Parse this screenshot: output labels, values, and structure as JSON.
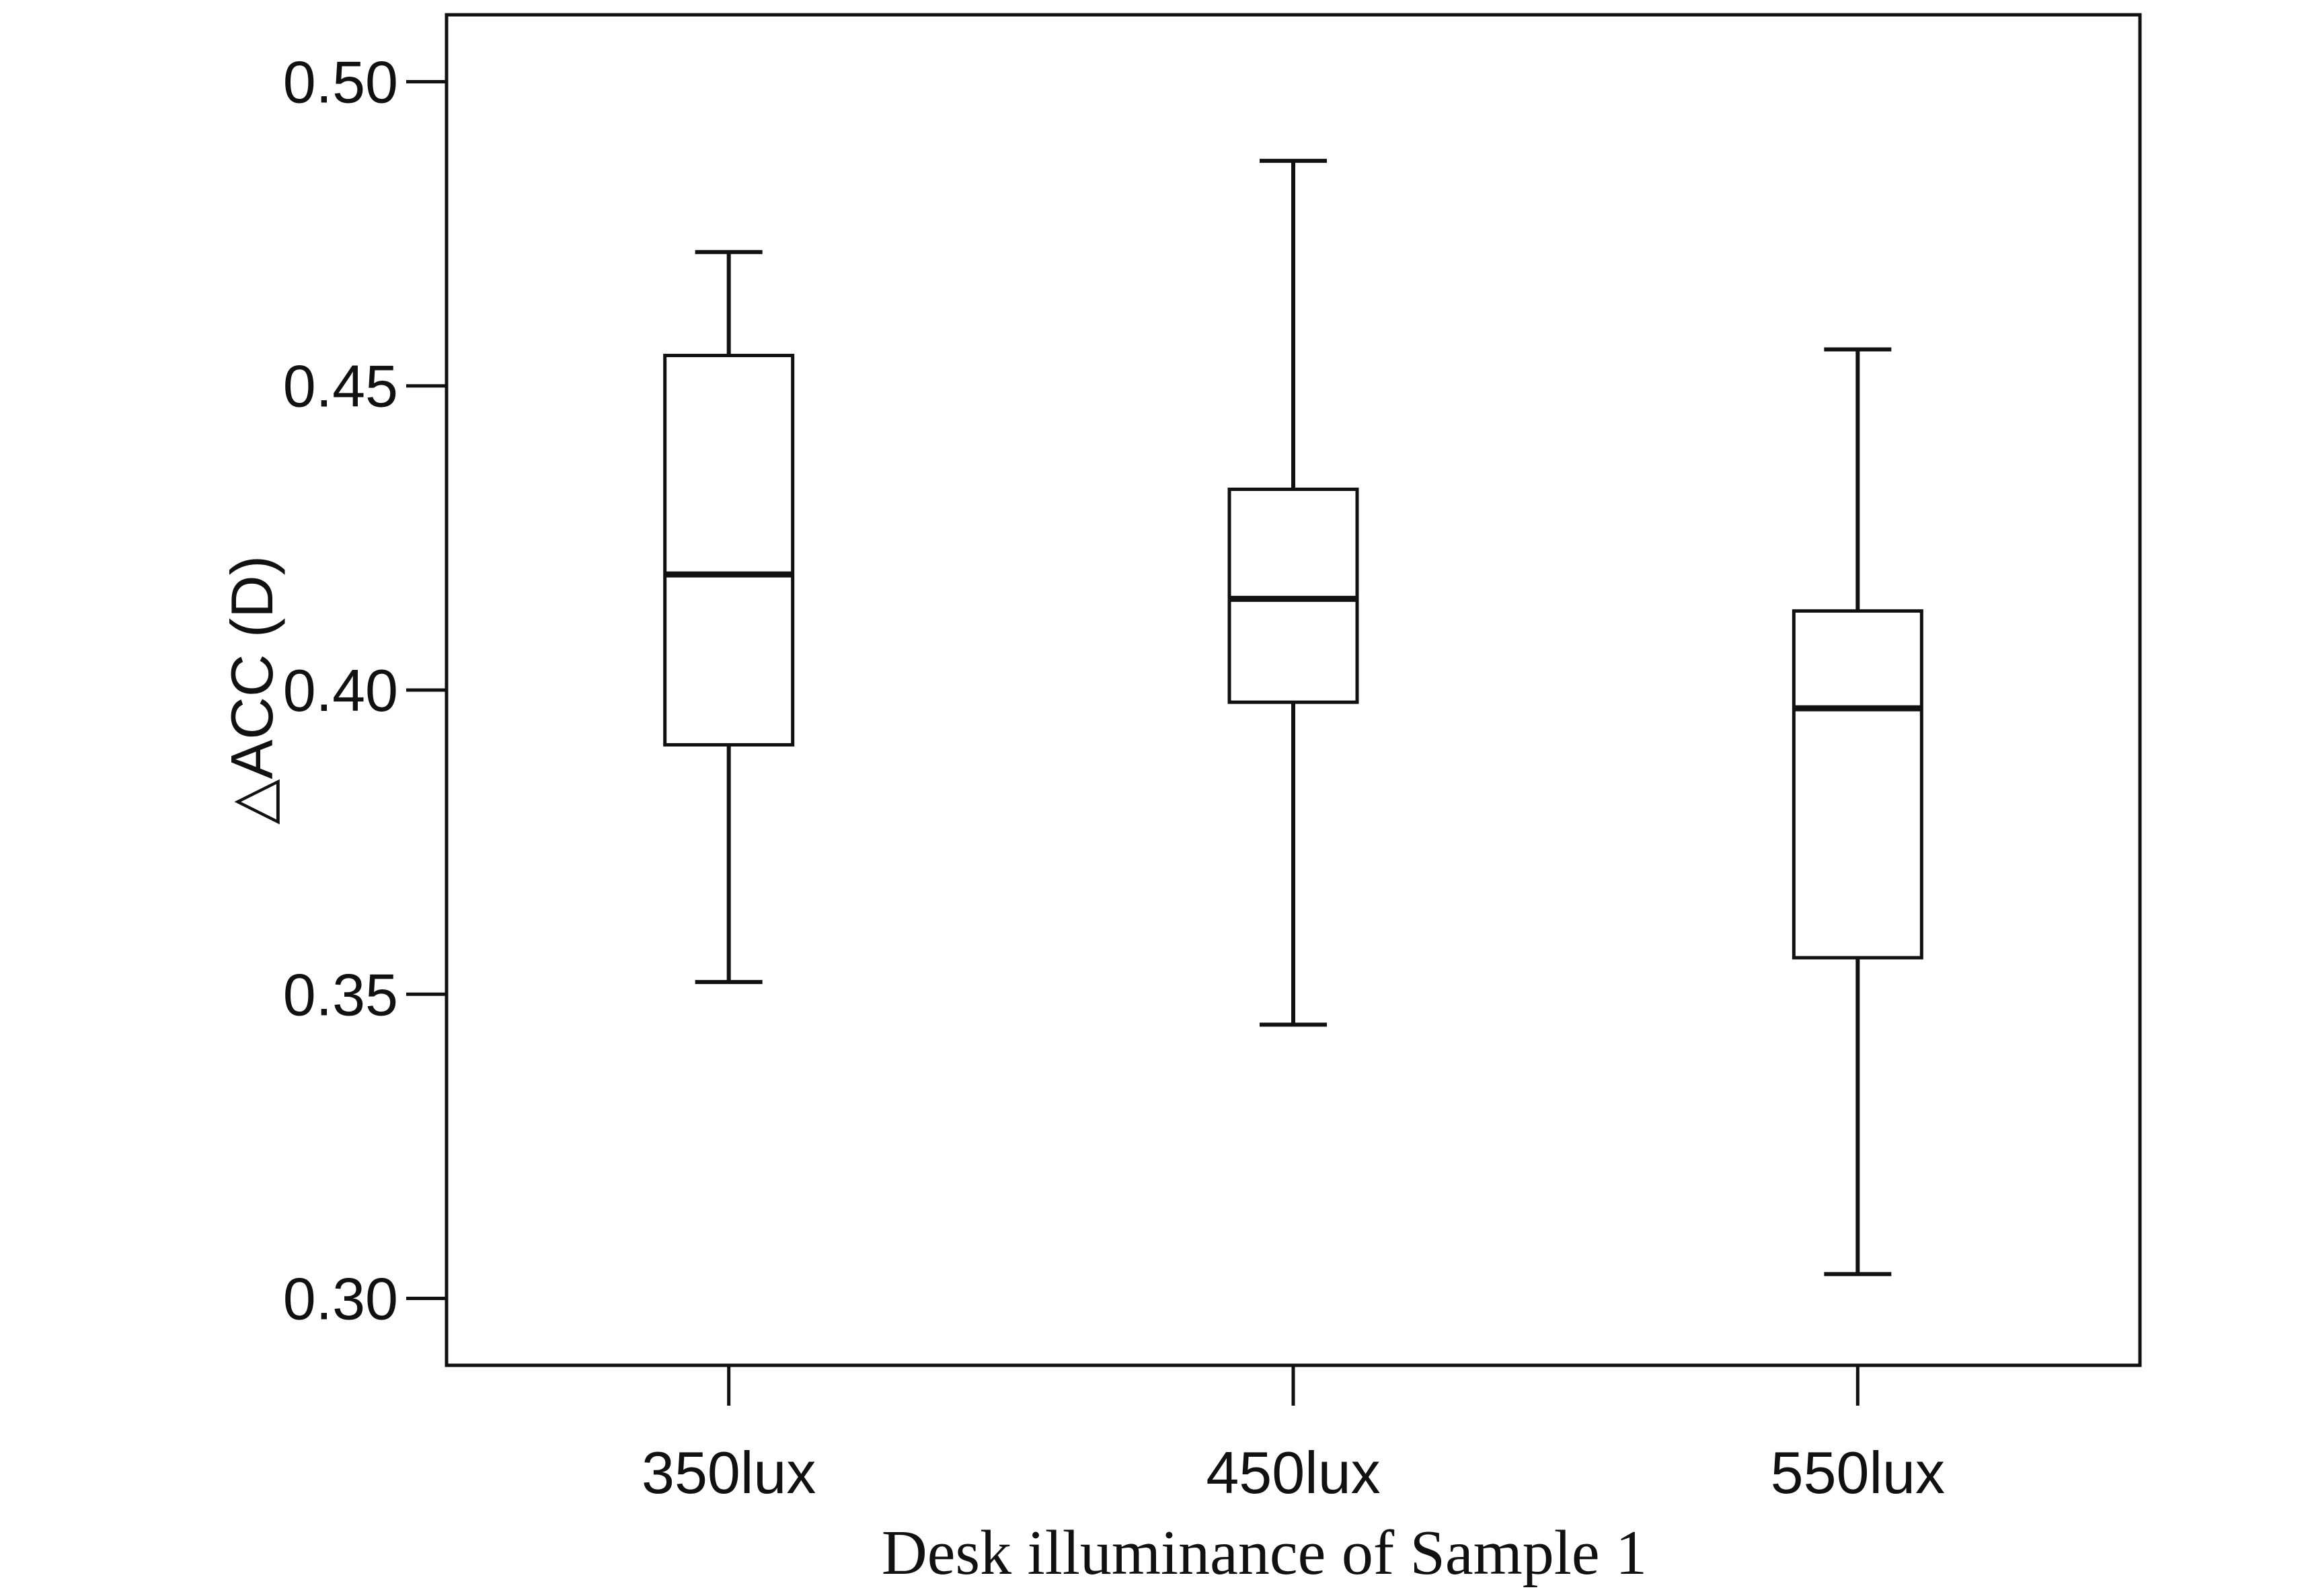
{
  "chart_data": {
    "type": "box",
    "title": "",
    "xlabel": "Desk illuminance of Sample 1",
    "ylabel": "△ACC (D)",
    "ylim": [
      0.289,
      0.511
    ],
    "yticks": [
      0.3,
      0.35,
      0.4,
      0.45,
      0.5
    ],
    "ytick_labels": [
      "0.30",
      "0.35",
      "0.40",
      "0.45",
      "0.50"
    ],
    "grid": false,
    "legend": "none",
    "categories": [
      "350lux",
      "450lux",
      "550lux"
    ],
    "boxes": [
      {
        "category": "350lux",
        "whisker_low": 0.352,
        "q1": 0.391,
        "median": 0.419,
        "q3": 0.455,
        "whisker_high": 0.472
      },
      {
        "category": "450lux",
        "whisker_low": 0.345,
        "q1": 0.398,
        "median": 0.415,
        "q3": 0.433,
        "whisker_high": 0.487
      },
      {
        "category": "550lux",
        "whisker_low": 0.304,
        "q1": 0.356,
        "median": 0.397,
        "q3": 0.413,
        "whisker_high": 0.456
      }
    ],
    "colors": {
      "box_fill": "#ffffff",
      "stroke": "#111111"
    }
  }
}
